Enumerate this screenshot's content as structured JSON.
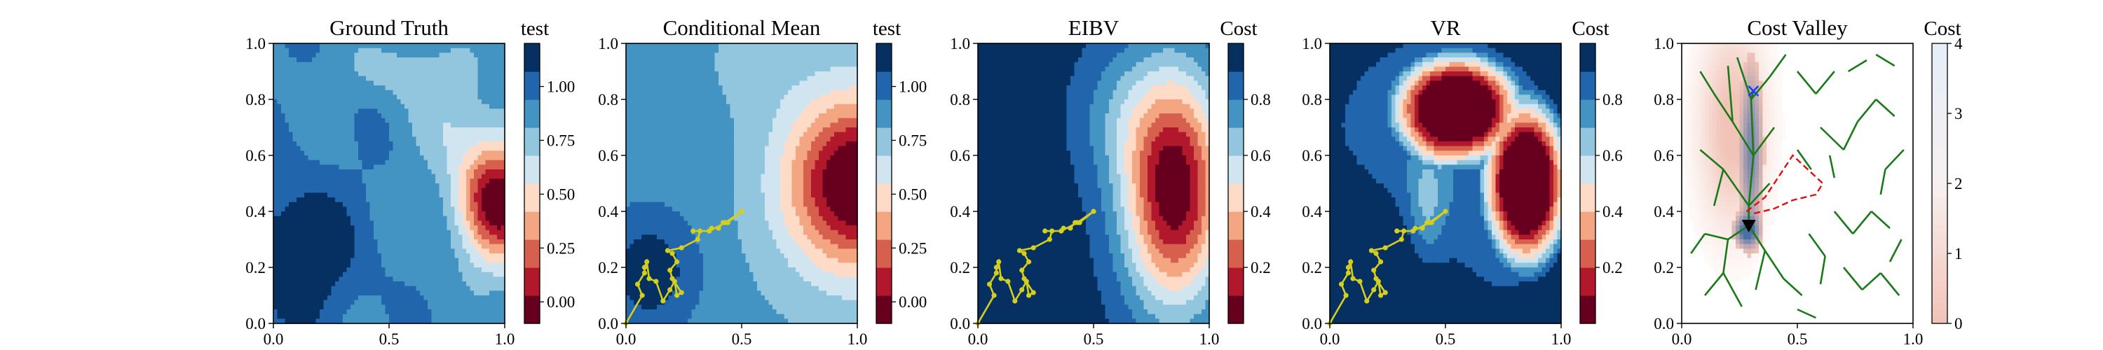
{
  "figure": {
    "panels": [
      {
        "id": "ground-truth",
        "title": "Ground Truth",
        "colorbar_label": "test",
        "colorbar_ticks": [
          "0.00",
          "0.25",
          "0.50",
          "0.75",
          "1.00"
        ],
        "field": "ground_truth"
      },
      {
        "id": "conditional-mean",
        "title": "Conditional Mean",
        "colorbar_label": "test",
        "colorbar_ticks": [
          "0.00",
          "0.25",
          "0.50",
          "0.75",
          "1.00"
        ],
        "field": "conditional_mean"
      },
      {
        "id": "eibv",
        "title": "EIBV",
        "colorbar_label": "Cost",
        "colorbar_ticks": [
          "0.2",
          "0.4",
          "0.6",
          "0.8"
        ],
        "field": "eibv"
      },
      {
        "id": "vr",
        "title": "VR",
        "colorbar_label": "Cost",
        "colorbar_ticks": [
          "0.2",
          "0.4",
          "0.6",
          "0.8"
        ],
        "field": "vr"
      },
      {
        "id": "cost-valley",
        "title": "Cost Valley",
        "colorbar_label": "Cost",
        "colorbar_ticks": [
          "0",
          "1",
          "2",
          "3",
          "4"
        ],
        "field": "cost_valley"
      }
    ],
    "x_ticks": [
      "0.0",
      "0.5",
      "1.0"
    ],
    "y_ticks": [
      "0.0",
      "0.2",
      "0.4",
      "0.6",
      "0.8",
      "1.0"
    ]
  },
  "chart_data": [
    {
      "type": "heatmap",
      "title": "Ground Truth",
      "colorbar_label": "test",
      "xlim": [
        0,
        1
      ],
      "ylim": [
        0,
        1
      ],
      "x_ticks": [
        0.0,
        0.5,
        1.0
      ],
      "y_ticks": [
        0.0,
        0.2,
        0.4,
        0.6,
        0.8,
        1.0
      ],
      "color_range": [
        -0.1,
        1.2
      ],
      "colormap": "RdBu",
      "levels": 10
    },
    {
      "type": "heatmap",
      "title": "Conditional Mean",
      "colorbar_label": "test",
      "xlim": [
        0,
        1
      ],
      "ylim": [
        0,
        1
      ],
      "x_ticks": [
        0.0,
        0.5,
        1.0
      ],
      "y_ticks": [
        0.0,
        0.2,
        0.4,
        0.6,
        0.8,
        1.0
      ],
      "color_range": [
        -0.1,
        1.2
      ],
      "colormap": "RdBu",
      "levels": 10,
      "path_color": "#d4cf1e",
      "path": [
        [
          0.0,
          0.0
        ],
        [
          0.07,
          0.1
        ],
        [
          0.05,
          0.14
        ],
        [
          0.08,
          0.18
        ],
        [
          0.08,
          0.2
        ],
        [
          0.09,
          0.22
        ],
        [
          0.1,
          0.16
        ],
        [
          0.13,
          0.15
        ],
        [
          0.16,
          0.08
        ],
        [
          0.19,
          0.12
        ],
        [
          0.21,
          0.15
        ],
        [
          0.22,
          0.1
        ],
        [
          0.24,
          0.11
        ],
        [
          0.2,
          0.16
        ],
        [
          0.19,
          0.19
        ],
        [
          0.22,
          0.22
        ],
        [
          0.2,
          0.25
        ],
        [
          0.18,
          0.26
        ],
        [
          0.24,
          0.27
        ],
        [
          0.31,
          0.3
        ],
        [
          0.32,
          0.33
        ],
        [
          0.36,
          0.33
        ],
        [
          0.37,
          0.34
        ],
        [
          0.4,
          0.34
        ],
        [
          0.42,
          0.36
        ],
        [
          0.44,
          0.36
        ],
        [
          0.5,
          0.4
        ],
        [
          0.43,
          0.36
        ],
        [
          0.36,
          0.33
        ],
        [
          0.29,
          0.33
        ]
      ]
    },
    {
      "type": "heatmap",
      "title": "EIBV",
      "colorbar_label": "Cost",
      "xlim": [
        0,
        1
      ],
      "ylim": [
        0,
        1
      ],
      "x_ticks": [
        0.0,
        0.5,
        1.0
      ],
      "y_ticks": [
        0.0,
        0.2,
        0.4,
        0.6,
        0.8,
        1.0
      ],
      "color_range": [
        0.0,
        1.0
      ],
      "colormap": "RdBu",
      "levels": 10,
      "path_color": "#d4cf1e",
      "path": [
        [
          0.0,
          0.0
        ],
        [
          0.07,
          0.1
        ],
        [
          0.05,
          0.14
        ],
        [
          0.08,
          0.18
        ],
        [
          0.08,
          0.2
        ],
        [
          0.09,
          0.22
        ],
        [
          0.1,
          0.16
        ],
        [
          0.13,
          0.15
        ],
        [
          0.16,
          0.08
        ],
        [
          0.19,
          0.12
        ],
        [
          0.21,
          0.15
        ],
        [
          0.22,
          0.1
        ],
        [
          0.24,
          0.11
        ],
        [
          0.2,
          0.16
        ],
        [
          0.19,
          0.19
        ],
        [
          0.22,
          0.22
        ],
        [
          0.2,
          0.25
        ],
        [
          0.18,
          0.26
        ],
        [
          0.24,
          0.27
        ],
        [
          0.31,
          0.3
        ],
        [
          0.32,
          0.33
        ],
        [
          0.36,
          0.33
        ],
        [
          0.37,
          0.34
        ],
        [
          0.4,
          0.34
        ],
        [
          0.42,
          0.36
        ],
        [
          0.44,
          0.36
        ],
        [
          0.5,
          0.4
        ],
        [
          0.43,
          0.36
        ],
        [
          0.36,
          0.33
        ],
        [
          0.29,
          0.33
        ]
      ]
    },
    {
      "type": "heatmap",
      "title": "VR",
      "colorbar_label": "Cost",
      "xlim": [
        0,
        1
      ],
      "ylim": [
        0,
        1
      ],
      "x_ticks": [
        0.0,
        0.5,
        1.0
      ],
      "y_ticks": [
        0.0,
        0.2,
        0.4,
        0.6,
        0.8,
        1.0
      ],
      "color_range": [
        0.0,
        1.0
      ],
      "colormap": "RdBu",
      "levels": 10,
      "path_color": "#d4cf1e",
      "path": [
        [
          0.0,
          0.0
        ],
        [
          0.07,
          0.1
        ],
        [
          0.05,
          0.14
        ],
        [
          0.08,
          0.18
        ],
        [
          0.08,
          0.2
        ],
        [
          0.09,
          0.22
        ],
        [
          0.1,
          0.16
        ],
        [
          0.13,
          0.15
        ],
        [
          0.16,
          0.08
        ],
        [
          0.19,
          0.12
        ],
        [
          0.21,
          0.15
        ],
        [
          0.22,
          0.1
        ],
        [
          0.24,
          0.11
        ],
        [
          0.2,
          0.16
        ],
        [
          0.19,
          0.19
        ],
        [
          0.22,
          0.22
        ],
        [
          0.2,
          0.25
        ],
        [
          0.18,
          0.26
        ],
        [
          0.24,
          0.27
        ],
        [
          0.31,
          0.3
        ],
        [
          0.32,
          0.33
        ],
        [
          0.36,
          0.33
        ],
        [
          0.37,
          0.34
        ],
        [
          0.4,
          0.34
        ],
        [
          0.42,
          0.36
        ],
        [
          0.44,
          0.36
        ],
        [
          0.5,
          0.4
        ],
        [
          0.43,
          0.36
        ],
        [
          0.36,
          0.33
        ],
        [
          0.29,
          0.33
        ]
      ]
    },
    {
      "type": "heatmap",
      "title": "Cost Valley",
      "colorbar_label": "Cost",
      "xlim": [
        0,
        1
      ],
      "ylim": [
        0,
        1
      ],
      "x_ticks": [
        0.0,
        0.5,
        1.0
      ],
      "y_ticks": [
        0.0,
        0.2,
        0.4,
        0.6,
        0.8,
        1.0
      ],
      "color_range": [
        0,
        4
      ],
      "colormap": "RdBu",
      "tree_color": "#1a7a1a",
      "planned_path_color": "#e01010",
      "planned_path": [
        [
          0.28,
          0.4
        ],
        [
          0.36,
          0.45
        ],
        [
          0.48,
          0.6
        ],
        [
          0.61,
          0.5
        ],
        [
          0.58,
          0.46
        ],
        [
          0.48,
          0.44
        ],
        [
          0.4,
          0.41
        ],
        [
          0.3,
          0.39
        ]
      ],
      "current_location": [
        0.29,
        0.35
      ],
      "target_location": [
        0.31,
        0.83
      ],
      "tree_edges": [
        [
          [
            0.29,
            0.35
          ],
          [
            0.29,
            0.42
          ]
        ],
        [
          [
            0.29,
            0.42
          ],
          [
            0.31,
            0.6
          ]
        ],
        [
          [
            0.31,
            0.6
          ],
          [
            0.3,
            0.8
          ]
        ],
        [
          [
            0.3,
            0.8
          ],
          [
            0.31,
            0.83
          ]
        ],
        [
          [
            0.31,
            0.6
          ],
          [
            0.22,
            0.72
          ]
        ],
        [
          [
            0.22,
            0.72
          ],
          [
            0.14,
            0.82
          ]
        ],
        [
          [
            0.14,
            0.82
          ],
          [
            0.08,
            0.9
          ]
        ],
        [
          [
            0.22,
            0.72
          ],
          [
            0.2,
            0.92
          ]
        ],
        [
          [
            0.3,
            0.8
          ],
          [
            0.24,
            0.95
          ]
        ],
        [
          [
            0.3,
            0.8
          ],
          [
            0.38,
            0.88
          ]
        ],
        [
          [
            0.38,
            0.88
          ],
          [
            0.45,
            0.96
          ]
        ],
        [
          [
            0.31,
            0.6
          ],
          [
            0.4,
            0.7
          ]
        ],
        [
          [
            0.29,
            0.42
          ],
          [
            0.18,
            0.55
          ]
        ],
        [
          [
            0.18,
            0.55
          ],
          [
            0.08,
            0.62
          ]
        ],
        [
          [
            0.18,
            0.55
          ],
          [
            0.14,
            0.42
          ]
        ],
        [
          [
            0.29,
            0.42
          ],
          [
            0.38,
            0.5
          ]
        ],
        [
          [
            0.29,
            0.35
          ],
          [
            0.2,
            0.3
          ]
        ],
        [
          [
            0.2,
            0.3
          ],
          [
            0.1,
            0.32
          ]
        ],
        [
          [
            0.2,
            0.3
          ],
          [
            0.18,
            0.18
          ]
        ],
        [
          [
            0.29,
            0.35
          ],
          [
            0.36,
            0.26
          ]
        ],
        [
          [
            0.36,
            0.26
          ],
          [
            0.44,
            0.16
          ]
        ],
        [
          [
            0.36,
            0.26
          ],
          [
            0.32,
            0.12
          ]
        ],
        [
          [
            0.1,
            0.32
          ],
          [
            0.04,
            0.25
          ]
        ],
        [
          [
            0.18,
            0.18
          ],
          [
            0.1,
            0.1
          ]
        ],
        [
          [
            0.18,
            0.18
          ],
          [
            0.26,
            0.06
          ]
        ],
        [
          [
            0.44,
            0.16
          ],
          [
            0.52,
            0.1
          ]
        ],
        [
          [
            0.5,
            0.9
          ],
          [
            0.58,
            0.82
          ]
        ],
        [
          [
            0.58,
            0.82
          ],
          [
            0.66,
            0.9
          ]
        ],
        [
          [
            0.6,
            0.7
          ],
          [
            0.7,
            0.62
          ]
        ],
        [
          [
            0.7,
            0.62
          ],
          [
            0.76,
            0.72
          ]
        ],
        [
          [
            0.76,
            0.72
          ],
          [
            0.84,
            0.8
          ]
        ],
        [
          [
            0.84,
            0.8
          ],
          [
            0.92,
            0.74
          ]
        ],
        [
          [
            0.66,
            0.4
          ],
          [
            0.74,
            0.32
          ]
        ],
        [
          [
            0.74,
            0.32
          ],
          [
            0.82,
            0.4
          ]
        ],
        [
          [
            0.82,
            0.4
          ],
          [
            0.9,
            0.34
          ]
        ],
        [
          [
            0.7,
            0.2
          ],
          [
            0.78,
            0.12
          ]
        ],
        [
          [
            0.78,
            0.12
          ],
          [
            0.86,
            0.18
          ]
        ],
        [
          [
            0.86,
            0.18
          ],
          [
            0.94,
            0.1
          ]
        ],
        [
          [
            0.55,
            0.32
          ],
          [
            0.62,
            0.24
          ]
        ],
        [
          [
            0.62,
            0.24
          ],
          [
            0.6,
            0.14
          ]
        ],
        [
          [
            0.88,
            0.55
          ],
          [
            0.96,
            0.62
          ]
        ],
        [
          [
            0.88,
            0.55
          ],
          [
            0.86,
            0.46
          ]
        ],
        [
          [
            0.92,
            0.92
          ],
          [
            0.84,
            0.96
          ]
        ],
        [
          [
            0.72,
            0.9
          ],
          [
            0.8,
            0.94
          ]
        ],
        [
          [
            0.5,
            0.62
          ],
          [
            0.56,
            0.55
          ]
        ],
        [
          [
            0.64,
            0.6
          ],
          [
            0.66,
            0.52
          ]
        ],
        [
          [
            0.95,
            0.3
          ],
          [
            0.9,
            0.22
          ]
        ],
        [
          [
            0.5,
            0.05
          ],
          [
            0.58,
            0.02
          ]
        ]
      ]
    }
  ]
}
